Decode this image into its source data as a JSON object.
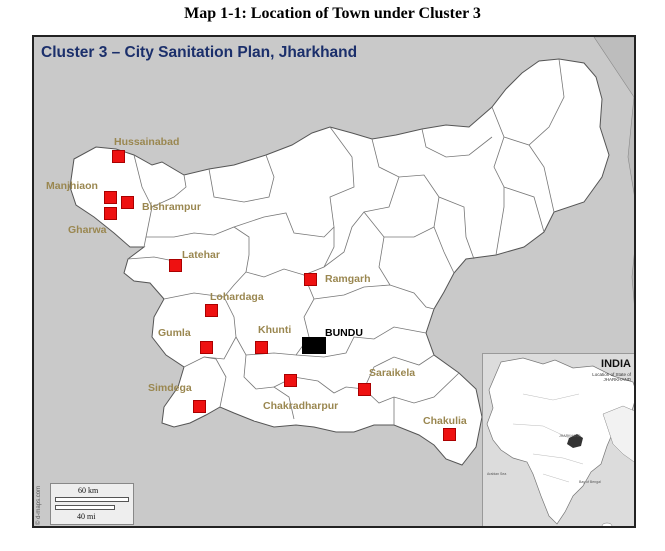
{
  "page": {
    "title": "Map 1-1: Location of Town under Cluster 3"
  },
  "map": {
    "title": "Cluster 3 – City Sanitation Plan, Jharkhand",
    "colors": {
      "state_fill": "#ffffff",
      "outside": "#c9c9c9",
      "marker": "#ee1111",
      "label": "#9a8750",
      "title": "#1b2f6b"
    },
    "towns": [
      {
        "name": "Hussainabad"
      },
      {
        "name": "Manjhiaon"
      },
      {
        "name": "Bishrampur"
      },
      {
        "name": "Gharwa"
      },
      {
        "name": "Latehar"
      },
      {
        "name": "Ramgarh"
      },
      {
        "name": "Lohardaga"
      },
      {
        "name": "Khunti"
      },
      {
        "name": "Gumla"
      },
      {
        "name": "Simdega"
      },
      {
        "name": "Chakradharpur"
      },
      {
        "name": "Saraikela"
      },
      {
        "name": "Chakulia"
      }
    ],
    "highlight": {
      "name": "BUNDU",
      "color": "#000000"
    },
    "inset": {
      "title": "INDIA",
      "subtitle": "Location of State of JHARKHAND",
      "state_label": "JHARKHAND",
      "bay_label": "Bay of Bengal",
      "sea_label": "Arabian Sea"
    },
    "scale": {
      "km": "60 km",
      "mi": "40 mi"
    },
    "watermark": "© d-maps.com"
  }
}
